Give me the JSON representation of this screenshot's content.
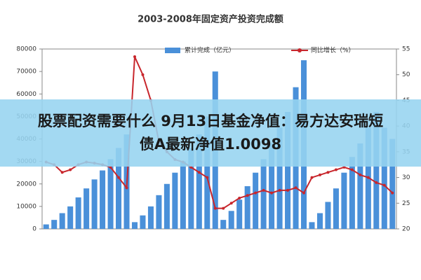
{
  "chart_data": {
    "type": "bar-line",
    "title": "2003-2008年固定资产投资完成额",
    "categories": [
      null,
      null,
      null,
      null,
      null,
      null,
      null,
      null,
      null,
      null,
      null,
      null,
      null,
      null,
      null,
      null,
      null,
      null,
      null,
      null,
      null,
      null,
      null,
      null,
      null,
      null,
      null,
      null,
      null,
      null,
      null,
      null,
      null,
      null,
      null,
      null,
      null,
      null,
      null,
      null,
      null,
      null,
      null,
      null
    ],
    "series": [
      {
        "name": "累计完成（亿元）",
        "type": "bar",
        "color": "#4a90d9",
        "values": [
          2000,
          4000,
          7000,
          10000,
          14000,
          18000,
          22000,
          26000,
          31000,
          36000,
          42000,
          3000,
          6000,
          10000,
          15000,
          20000,
          25000,
          30000,
          36000,
          42000,
          50000,
          70000,
          4000,
          8000,
          13000,
          19000,
          25000,
          31000,
          38000,
          45000,
          52000,
          63000,
          75000,
          3000,
          7000,
          12000,
          18000,
          25000,
          32000,
          38000,
          45000,
          52000,
          45000,
          40000
        ]
      },
      {
        "name": "同比增长（%）",
        "type": "line",
        "axis": "y2",
        "color": "#c8262c",
        "values": [
          33,
          32.5,
          31,
          31.5,
          32.5,
          33,
          32.8,
          32.5,
          32,
          30,
          28,
          53.5,
          50,
          45,
          37,
          35,
          33.5,
          33,
          32,
          31,
          30,
          24,
          24,
          25,
          26,
          26.5,
          27,
          27.5,
          27,
          27.5,
          27.5,
          28,
          27,
          30,
          30.5,
          31,
          31.5,
          32,
          31.5,
          30.5,
          30,
          29,
          28.5,
          27
        ]
      }
    ],
    "ylim": [
      0,
      80000
    ],
    "yticks": [
      0,
      10000,
      20000,
      30000,
      40000,
      50000,
      60000,
      70000,
      80000
    ],
    "y2lim": [
      20,
      55
    ],
    "y2ticks": [
      20,
      25,
      30,
      35,
      40,
      45,
      50,
      55
    ]
  },
  "banner": {
    "lines": [
      "股票配资需要什么 9月13日基金净值：易方达安瑞短",
      "债A最新净值1.0098"
    ]
  }
}
